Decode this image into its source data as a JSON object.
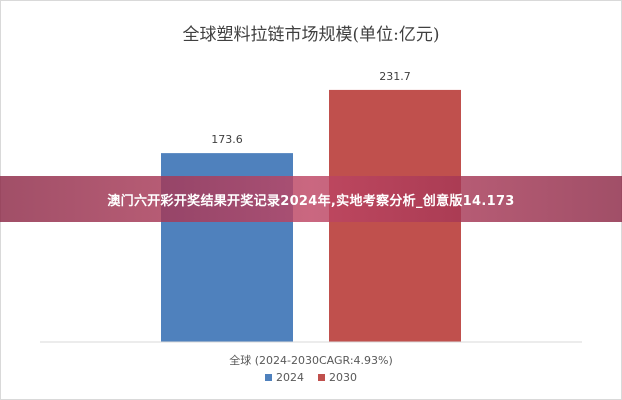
{
  "chart_data": {
    "type": "bar",
    "title": "全球塑料拉链市场规模(单位:亿元)",
    "categories": [
      "全球 (2024-2030CAGR:4.93%)"
    ],
    "series": [
      {
        "name": "2024",
        "values": [
          173.6
        ],
        "color": "#4f81bd"
      },
      {
        "name": "2030",
        "values": [
          231.7
        ],
        "color": "#c0504d"
      }
    ],
    "data_labels": [
      "173.6",
      "231.7"
    ],
    "ylim": [
      0,
      250
    ],
    "grid": false,
    "legend": "bottom"
  },
  "overlay": {
    "banner_text": "澳门六开彩开奖结果开奖记录2024年,实地考察分析_创意版14.173"
  }
}
